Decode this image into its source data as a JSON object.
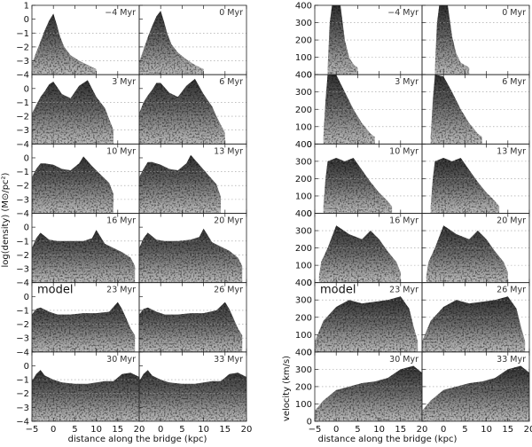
{
  "chart_data": [
    {
      "type": "heatmap",
      "colormap": "grayscale density of gas in each bin",
      "grid": "dotted horizontal lines",
      "panels_rows": 6,
      "panels_cols": 2,
      "xlabel": "distance along the bridge (kpc)",
      "ylabel": "log(density) (M⊙/pc²)",
      "xlim": [
        -5,
        20
      ],
      "ylim": [
        -4,
        1
      ],
      "x_ticks": [
        "−5",
        "0",
        "5",
        "10",
        "15",
        "20"
      ],
      "y_ticks": [
        "−4",
        "−3",
        "−2",
        "−1",
        "0",
        "1"
      ],
      "gridlines_y": [
        -3,
        -2,
        -1
      ],
      "model_label": "model",
      "model_label_panel": 8,
      "panel_labels": [
        "−4 Myr",
        "0 Myr",
        "3 Myr",
        "6 Myr",
        "10 Myr",
        "13 Myr",
        "16 Myr",
        "20 Myr",
        "23 Myr",
        "26 Myr",
        "30 Myr",
        "33 Myr"
      ],
      "ridge_profiles": [
        [
          [
            -5,
            -3.2
          ],
          [
            -4,
            -2.4
          ],
          [
            -3,
            -1.6
          ],
          [
            -2,
            -0.8
          ],
          [
            -1,
            -0.1
          ],
          [
            0,
            0.4
          ],
          [
            0.8,
            -0.4
          ],
          [
            1.5,
            -1.2
          ],
          [
            2.5,
            -2.0
          ],
          [
            4,
            -2.6
          ],
          [
            6,
            -3.0
          ],
          [
            8,
            -3.3
          ],
          [
            10,
            -3.6
          ]
        ],
        [
          [
            -5,
            -3.1
          ],
          [
            -4,
            -2.2
          ],
          [
            -3,
            -1.3
          ],
          [
            -2,
            -0.5
          ],
          [
            -1,
            0.2
          ],
          [
            0,
            0.6
          ],
          [
            0.8,
            -0.2
          ],
          [
            1.5,
            -1.0
          ],
          [
            2.5,
            -1.8
          ],
          [
            4,
            -2.4
          ],
          [
            6,
            -2.9
          ],
          [
            8,
            -3.3
          ],
          [
            10,
            -3.6
          ]
        ],
        [
          [
            -5,
            -1.8
          ],
          [
            -4,
            -1.2
          ],
          [
            -3,
            -0.6
          ],
          [
            -2,
            -0.2
          ],
          [
            -1,
            0.3
          ],
          [
            0,
            0.5
          ],
          [
            2,
            -0.4
          ],
          [
            4,
            -0.7
          ],
          [
            6,
            0.2
          ],
          [
            8,
            0.6
          ],
          [
            10,
            -0.6
          ],
          [
            12,
            -1.4
          ],
          [
            13,
            -2.2
          ],
          [
            14,
            -3.0
          ]
        ],
        [
          [
            -5,
            -1.8
          ],
          [
            -4,
            -1.0
          ],
          [
            -3,
            -0.5
          ],
          [
            -2,
            -0.1
          ],
          [
            -1,
            0.4
          ],
          [
            0,
            0.4
          ],
          [
            2,
            -0.3
          ],
          [
            4,
            -0.6
          ],
          [
            6,
            0.2
          ],
          [
            8,
            0.7
          ],
          [
            10,
            -0.4
          ],
          [
            12,
            -1.3
          ],
          [
            13,
            -2.0
          ],
          [
            15,
            -3.2
          ]
        ],
        [
          [
            -5,
            -1.4
          ],
          [
            -4,
            -0.8
          ],
          [
            -3,
            -0.4
          ],
          [
            -2,
            -0.4
          ],
          [
            0,
            -0.5
          ],
          [
            2,
            -0.8
          ],
          [
            4,
            -0.9
          ],
          [
            6,
            -0.4
          ],
          [
            7,
            0.1
          ],
          [
            9,
            -0.6
          ],
          [
            11,
            -1.2
          ],
          [
            13,
            -1.8
          ],
          [
            14,
            -2.6
          ]
        ],
        [
          [
            -5,
            -1.4
          ],
          [
            -4,
            -0.8
          ],
          [
            -3,
            -0.3
          ],
          [
            -2,
            -0.3
          ],
          [
            0,
            -0.5
          ],
          [
            2,
            -0.8
          ],
          [
            4,
            -0.9
          ],
          [
            6,
            -0.4
          ],
          [
            7,
            0.2
          ],
          [
            9,
            -0.5
          ],
          [
            11,
            -1.2
          ],
          [
            13,
            -1.9
          ],
          [
            14,
            -2.8
          ]
        ],
        [
          [
            -5,
            -1.5
          ],
          [
            -4,
            -0.8
          ],
          [
            -3,
            -0.4
          ],
          [
            -1,
            -0.9
          ],
          [
            1,
            -1.0
          ],
          [
            4,
            -1.0
          ],
          [
            7,
            -1.0
          ],
          [
            9,
            -0.8
          ],
          [
            10,
            -0.2
          ],
          [
            12,
            -1.2
          ],
          [
            14,
            -1.5
          ],
          [
            16,
            -1.8
          ],
          [
            18,
            -2.2
          ],
          [
            19,
            -2.8
          ]
        ],
        [
          [
            -5,
            -1.5
          ],
          [
            -4,
            -0.8
          ],
          [
            -3,
            -0.4
          ],
          [
            -1,
            -0.9
          ],
          [
            1,
            -1.0
          ],
          [
            4,
            -1.0
          ],
          [
            7,
            -0.9
          ],
          [
            9,
            -0.7
          ],
          [
            10,
            -0.1
          ],
          [
            12,
            -1.1
          ],
          [
            14,
            -1.4
          ],
          [
            16,
            -1.7
          ],
          [
            18,
            -2.2
          ],
          [
            19,
            -2.8
          ]
        ],
        [
          [
            -5,
            -1.3
          ],
          [
            -4,
            -0.9
          ],
          [
            -3,
            -0.8
          ],
          [
            -1,
            -1.1
          ],
          [
            1,
            -1.3
          ],
          [
            4,
            -1.3
          ],
          [
            7,
            -1.2
          ],
          [
            10,
            -1.2
          ],
          [
            13,
            -1.1
          ],
          [
            15,
            -0.4
          ],
          [
            16,
            -0.9
          ],
          [
            17,
            -1.6
          ],
          [
            18,
            -2.3
          ],
          [
            19,
            -2.8
          ]
        ],
        [
          [
            -5,
            -1.3
          ],
          [
            -4,
            -0.9
          ],
          [
            -3,
            -0.8
          ],
          [
            -1,
            -1.1
          ],
          [
            1,
            -1.3
          ],
          [
            4,
            -1.3
          ],
          [
            7,
            -1.2
          ],
          [
            10,
            -1.2
          ],
          [
            13,
            -1.0
          ],
          [
            15,
            -0.4
          ],
          [
            16,
            -0.9
          ],
          [
            17,
            -1.6
          ],
          [
            18,
            -2.3
          ],
          [
            19,
            -2.8
          ]
        ],
        [
          [
            -5,
            -1.1
          ],
          [
            -4,
            -0.6
          ],
          [
            -3,
            -0.3
          ],
          [
            -2,
            -0.7
          ],
          [
            0,
            -1.0
          ],
          [
            2,
            -1.2
          ],
          [
            5,
            -1.3
          ],
          [
            8,
            -1.3
          ],
          [
            10,
            -1.2
          ],
          [
            12,
            -1.1
          ],
          [
            14,
            -1.1
          ],
          [
            16,
            -0.6
          ],
          [
            18,
            -0.5
          ],
          [
            20,
            -0.8
          ]
        ],
        [
          [
            -5,
            -1.1
          ],
          [
            -4,
            -0.6
          ],
          [
            -3,
            -0.3
          ],
          [
            -2,
            -0.7
          ],
          [
            0,
            -1.0
          ],
          [
            2,
            -1.2
          ],
          [
            5,
            -1.3
          ],
          [
            8,
            -1.3
          ],
          [
            10,
            -1.2
          ],
          [
            12,
            -1.1
          ],
          [
            14,
            -1.1
          ],
          [
            16,
            -0.6
          ],
          [
            18,
            -0.5
          ],
          [
            20,
            -0.8
          ]
        ]
      ]
    },
    {
      "type": "heatmap",
      "colormap": "grayscale density of gas in each bin",
      "grid": "dotted horizontal lines",
      "panels_rows": 6,
      "panels_cols": 2,
      "xlabel": "distance along the bridge (kpc)",
      "ylabel": "velocity (km/s)",
      "xlim": [
        -5,
        20
      ],
      "ylim": [
        0,
        400
      ],
      "x_ticks": [
        "−5",
        "0",
        "5",
        "10",
        "15",
        "20"
      ],
      "y_ticks": [
        "0",
        "100",
        "200",
        "300",
        "400"
      ],
      "gridlines_y": [
        100,
        200,
        300
      ],
      "model_label": "model",
      "model_label_panel": 8,
      "panel_labels": [
        "−4 Myr",
        "0 Myr",
        "3 Myr",
        "6 Myr",
        "10 Myr",
        "13 Myr",
        "16 Myr",
        "20 Myr",
        "23 Myr",
        "26 Myr",
        "30 Myr",
        "33 Myr"
      ],
      "ridge_profiles": [
        [
          [
            -2,
            40
          ],
          [
            -1.5,
            300
          ],
          [
            -1,
            400
          ],
          [
            1,
            400
          ],
          [
            2,
            200
          ],
          [
            3,
            100
          ],
          [
            4,
            60
          ],
          [
            5,
            40
          ]
        ],
        [
          [
            -2,
            40
          ],
          [
            -1.5,
            300
          ],
          [
            -1,
            400
          ],
          [
            1,
            400
          ],
          [
            2,
            220
          ],
          [
            3,
            120
          ],
          [
            4,
            70
          ],
          [
            6,
            40
          ]
        ],
        [
          [
            -3,
            40
          ],
          [
            -2.5,
            250
          ],
          [
            -2,
            400
          ],
          [
            0,
            400
          ],
          [
            2,
            300
          ],
          [
            4,
            200
          ],
          [
            6,
            120
          ],
          [
            8,
            60
          ],
          [
            9,
            40
          ]
        ],
        [
          [
            -3,
            40
          ],
          [
            -2.5,
            250
          ],
          [
            -2,
            400
          ],
          [
            0,
            390
          ],
          [
            2,
            300
          ],
          [
            4,
            200
          ],
          [
            6,
            120
          ],
          [
            8,
            60
          ],
          [
            9,
            40
          ]
        ],
        [
          [
            -3,
            40
          ],
          [
            -2.5,
            200
          ],
          [
            -2,
            300
          ],
          [
            0,
            320
          ],
          [
            2,
            300
          ],
          [
            4,
            320
          ],
          [
            6,
            250
          ],
          [
            8,
            180
          ],
          [
            10,
            120
          ],
          [
            12,
            70
          ],
          [
            13,
            40
          ]
        ],
        [
          [
            -3,
            40
          ],
          [
            -2.5,
            200
          ],
          [
            -2,
            300
          ],
          [
            0,
            320
          ],
          [
            2,
            300
          ],
          [
            4,
            320
          ],
          [
            6,
            250
          ],
          [
            8,
            180
          ],
          [
            10,
            120
          ],
          [
            12,
            70
          ],
          [
            13,
            40
          ]
        ],
        [
          [
            -4,
            40
          ],
          [
            -3.5,
            120
          ],
          [
            -2,
            200
          ],
          [
            0,
            330
          ],
          [
            3,
            280
          ],
          [
            6,
            250
          ],
          [
            8,
            300
          ],
          [
            10,
            250
          ],
          [
            12,
            180
          ],
          [
            14,
            120
          ],
          [
            15,
            60
          ]
        ],
        [
          [
            -4,
            40
          ],
          [
            -3.5,
            120
          ],
          [
            -2,
            200
          ],
          [
            0,
            330
          ],
          [
            3,
            280
          ],
          [
            6,
            250
          ],
          [
            8,
            300
          ],
          [
            10,
            250
          ],
          [
            12,
            180
          ],
          [
            14,
            120
          ],
          [
            15,
            60
          ]
        ],
        [
          [
            -5,
            60
          ],
          [
            -3,
            180
          ],
          [
            0,
            260
          ],
          [
            3,
            300
          ],
          [
            6,
            280
          ],
          [
            9,
            290
          ],
          [
            12,
            300
          ],
          [
            15,
            320
          ],
          [
            17,
            250
          ],
          [
            18,
            150
          ],
          [
            19,
            60
          ]
        ],
        [
          [
            -5,
            60
          ],
          [
            -3,
            180
          ],
          [
            0,
            260
          ],
          [
            3,
            300
          ],
          [
            6,
            280
          ],
          [
            9,
            290
          ],
          [
            12,
            300
          ],
          [
            15,
            320
          ],
          [
            17,
            250
          ],
          [
            18,
            150
          ],
          [
            19,
            60
          ]
        ],
        [
          [
            -5,
            60
          ],
          [
            -3,
            120
          ],
          [
            0,
            180
          ],
          [
            3,
            200
          ],
          [
            6,
            220
          ],
          [
            9,
            230
          ],
          [
            12,
            250
          ],
          [
            15,
            300
          ],
          [
            18,
            320
          ],
          [
            20,
            280
          ]
        ],
        [
          [
            -5,
            60
          ],
          [
            -3,
            120
          ],
          [
            0,
            180
          ],
          [
            3,
            200
          ],
          [
            6,
            220
          ],
          [
            9,
            230
          ],
          [
            12,
            250
          ],
          [
            15,
            300
          ],
          [
            18,
            320
          ],
          [
            20,
            280
          ]
        ]
      ]
    }
  ]
}
